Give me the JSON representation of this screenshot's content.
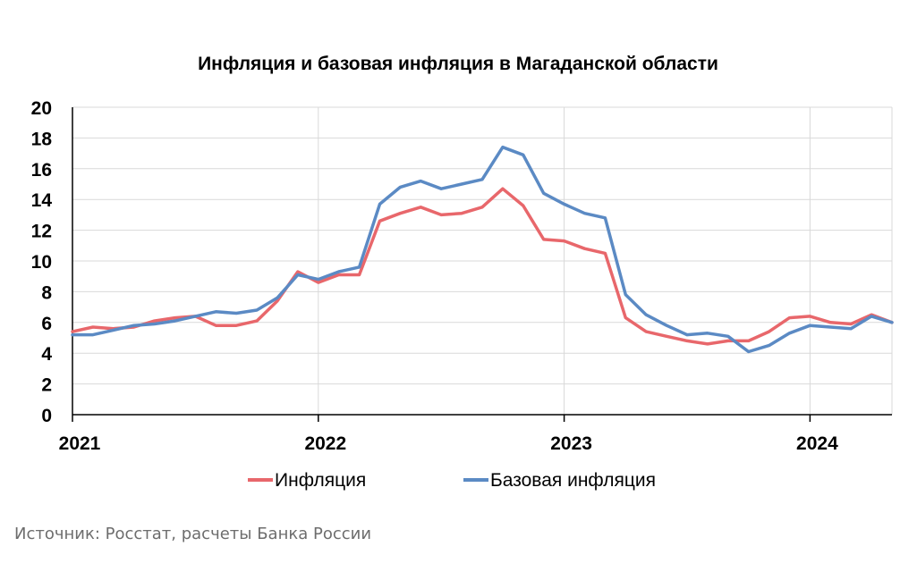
{
  "chart_data": {
    "type": "line",
    "title": "Инфляция и базовая инфляция в Магаданской области",
    "xlabel": "",
    "ylabel": "",
    "ylim": [
      0,
      20
    ],
    "yticks": [
      "0",
      "2",
      "4",
      "6",
      "8",
      "10",
      "12",
      "14",
      "16",
      "18",
      "20"
    ],
    "xticks": [
      "2021",
      "2022",
      "2023",
      "2024"
    ],
    "x": [
      "2021-01",
      "2021-02",
      "2021-03",
      "2021-04",
      "2021-05",
      "2021-06",
      "2021-07",
      "2021-08",
      "2021-09",
      "2021-10",
      "2021-11",
      "2021-12",
      "2022-01",
      "2022-02",
      "2022-03",
      "2022-04",
      "2022-05",
      "2022-06",
      "2022-07",
      "2022-08",
      "2022-09",
      "2022-10",
      "2022-11",
      "2022-12",
      "2023-01",
      "2023-02",
      "2023-03",
      "2023-04",
      "2023-05",
      "2023-06",
      "2023-07",
      "2023-08",
      "2023-09",
      "2023-10",
      "2023-11",
      "2023-12",
      "2024-01",
      "2024-02",
      "2024-03",
      "2024-04",
      "2024-05"
    ],
    "grid": true,
    "legend_position": "bottom",
    "series": [
      {
        "name": "Инфляция",
        "color": "#e8676b",
        "values": [
          5.4,
          5.7,
          5.6,
          5.7,
          6.1,
          6.3,
          6.4,
          5.8,
          5.8,
          6.1,
          7.4,
          9.3,
          8.6,
          9.1,
          9.1,
          12.6,
          13.1,
          13.5,
          13.0,
          13.1,
          13.5,
          14.7,
          13.6,
          11.4,
          11.3,
          10.8,
          10.5,
          6.3,
          5.4,
          5.1,
          4.8,
          4.6,
          4.8,
          4.8,
          5.4,
          6.3,
          6.4,
          6.0,
          5.9,
          6.5,
          6.0
        ]
      },
      {
        "name": "Базовая инфляция",
        "color": "#5b8ac4",
        "values": [
          5.2,
          5.2,
          5.5,
          5.8,
          5.9,
          6.1,
          6.4,
          6.7,
          6.6,
          6.8,
          7.6,
          9.1,
          8.8,
          9.3,
          9.6,
          13.7,
          14.8,
          15.2,
          14.7,
          15.0,
          15.3,
          17.4,
          16.9,
          14.4,
          13.7,
          13.1,
          12.8,
          7.8,
          6.5,
          5.8,
          5.2,
          5.3,
          5.1,
          4.1,
          4.5,
          5.3,
          5.8,
          5.7,
          5.6,
          6.4,
          6.0
        ]
      }
    ]
  },
  "source_text": "Источник: Росстат, расчеты Банка России"
}
